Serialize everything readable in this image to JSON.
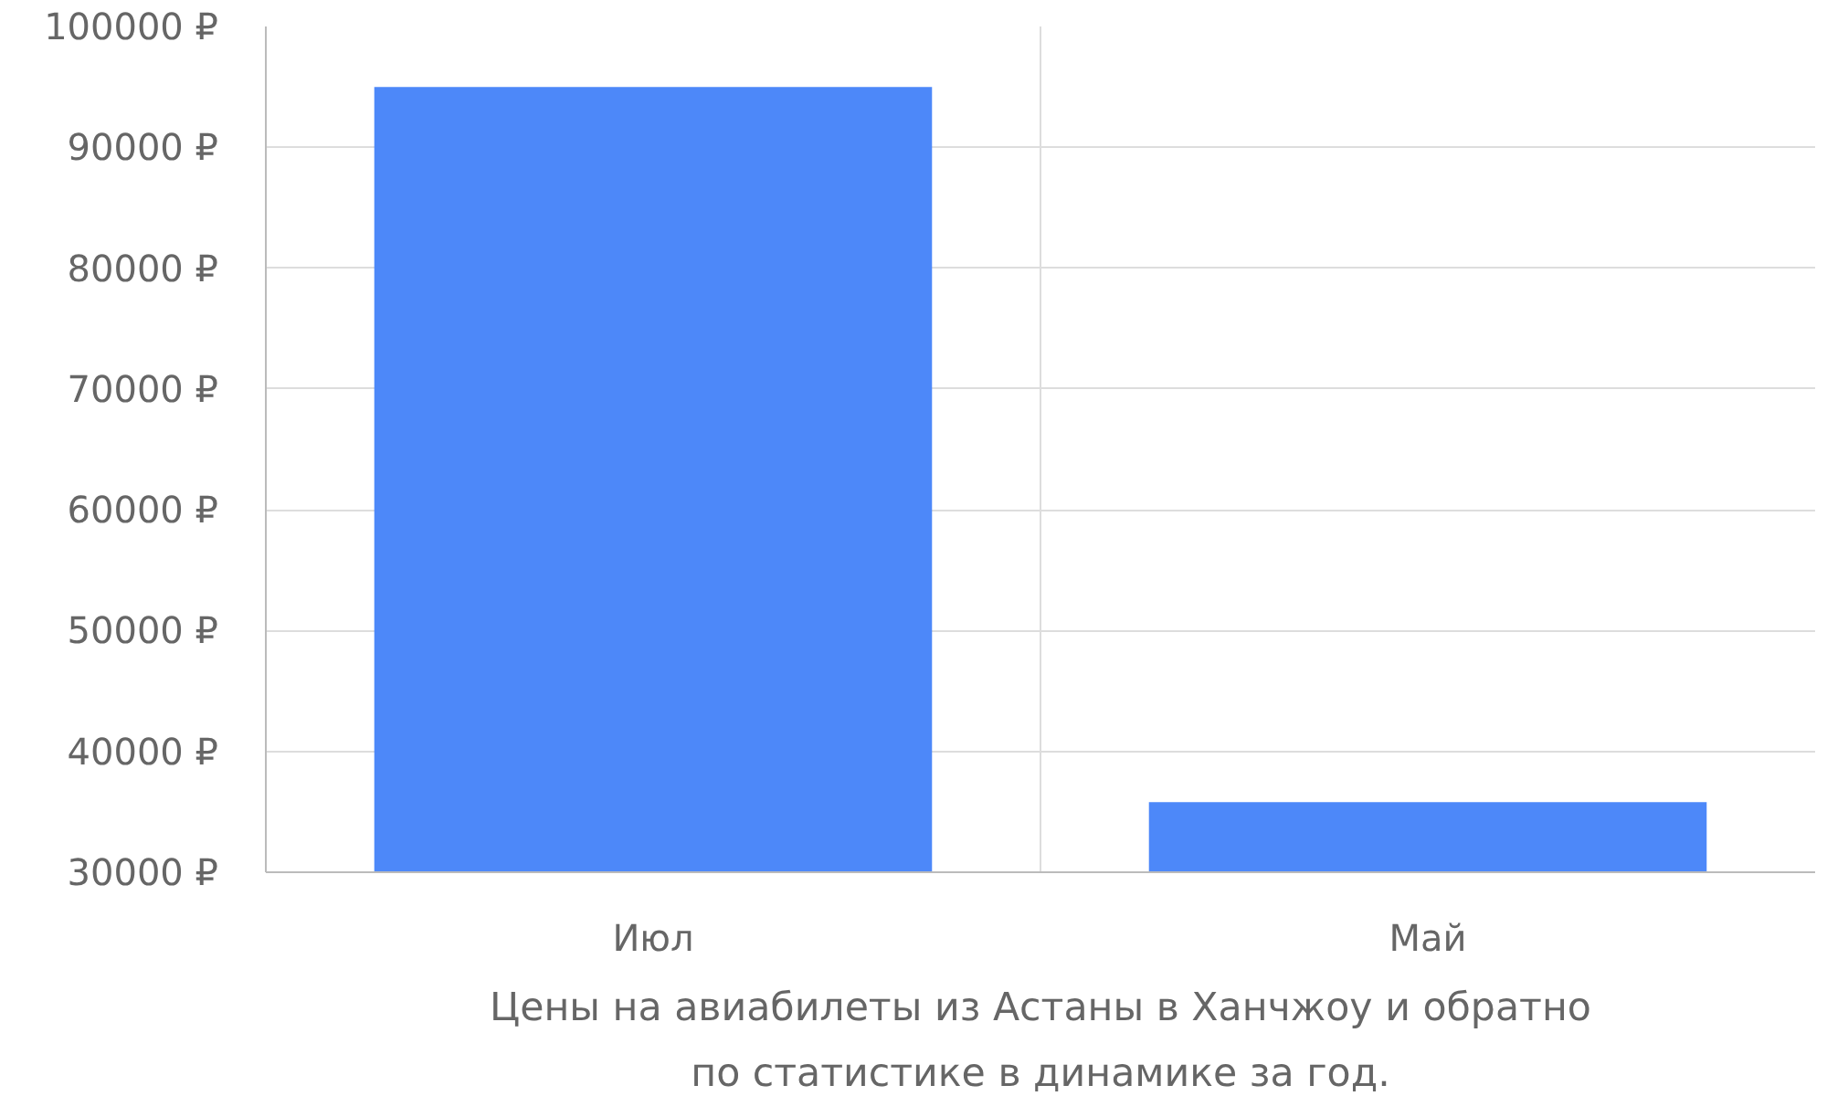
{
  "chart_data": {
    "type": "bar",
    "categories": [
      "Июл",
      "Май"
    ],
    "values": [
      95000,
      35800
    ],
    "color": "#4d88f9",
    "ylim": [
      30000,
      100000
    ],
    "yticks": [
      {
        "value": 30000,
        "label": "30000 ₽"
      },
      {
        "value": 40000,
        "label": "40000 ₽"
      },
      {
        "value": 50000,
        "label": "50000 ₽"
      },
      {
        "value": 60000,
        "label": "60000 ₽"
      },
      {
        "value": 70000,
        "label": "70000 ₽"
      },
      {
        "value": 80000,
        "label": "80000 ₽"
      },
      {
        "value": 90000,
        "label": "90000 ₽"
      },
      {
        "value": 100000,
        "label": "100000 ₽"
      }
    ],
    "grid": true,
    "annotations": [
      "Цены на авиабилеты из Астаны в Ханчжоу и обратно",
      "по статистике в динамике за год."
    ]
  }
}
